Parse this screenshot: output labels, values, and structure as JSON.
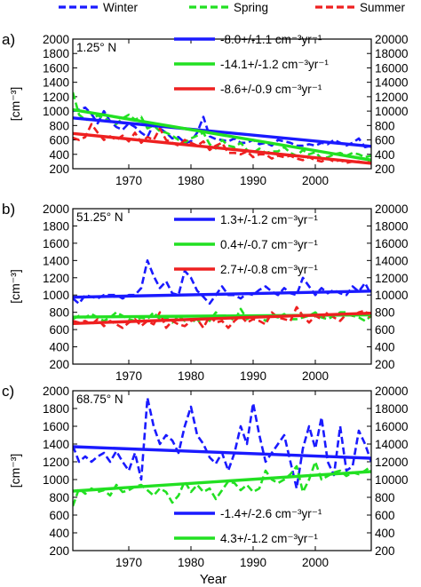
{
  "figure": {
    "legend": [
      {
        "label": "Winter",
        "color": "#1a1aff"
      },
      {
        "label": "Spring",
        "color": "#22e022"
      },
      {
        "label": "Summer",
        "color": "#ee2020"
      }
    ],
    "xlabel": "Year"
  },
  "chart_data": [
    {
      "type": "line",
      "panel": "a)",
      "latitude": "1.25° N",
      "ylabel": "[cm⁻³]",
      "xlim": [
        1961,
        2009
      ],
      "ylim": [
        200,
        2000
      ],
      "xticks": [
        "1970",
        "1980",
        "1990",
        "2000"
      ],
      "yticks_left": [
        "200",
        "400",
        "600",
        "800",
        "1000",
        "1200",
        "1400",
        "1600",
        "1800",
        "2000"
      ],
      "yticks_right": [
        "200",
        "400",
        "600",
        "800",
        "10000",
        "12000",
        "14000",
        "16000",
        "18000",
        "20000"
      ],
      "x": [
        1961,
        1962,
        1963,
        1964,
        1965,
        1966,
        1967,
        1968,
        1969,
        1970,
        1971,
        1972,
        1973,
        1974,
        1975,
        1976,
        1977,
        1978,
        1979,
        1980,
        1981,
        1982,
        1983,
        1984,
        1985,
        1986,
        1987,
        1988,
        1989,
        1990,
        1991,
        1992,
        1993,
        1994,
        1995,
        1996,
        1997,
        1998,
        1999,
        2000,
        2001,
        2002,
        2003,
        2004,
        2005,
        2006,
        2007,
        2008,
        2009
      ],
      "series": [
        {
          "name": "Winter",
          "color": "#1a1aff",
          "values": [
            1000,
            1020,
            1050,
            960,
            830,
            1000,
            860,
            780,
            740,
            830,
            780,
            700,
            640,
            820,
            760,
            700,
            620,
            640,
            560,
            580,
            700,
            920,
            650,
            610,
            600,
            580,
            620,
            560,
            560,
            600,
            540,
            560,
            520,
            600,
            580,
            560,
            520,
            520,
            540,
            520,
            560,
            540,
            600,
            560,
            520,
            560,
            620,
            500,
            520
          ]
        },
        {
          "name": "Spring",
          "color": "#22e022",
          "values": [
            1260,
            950,
            880,
            880,
            940,
            900,
            860,
            820,
            900,
            950,
            880,
            920,
            760,
            800,
            720,
            700,
            660,
            600,
            560,
            620,
            660,
            700,
            540,
            480,
            600,
            520,
            500,
            560,
            460,
            420,
            480,
            420,
            440,
            440,
            500,
            420,
            380,
            460,
            400,
            430,
            340,
            360,
            400,
            420,
            380,
            420,
            400,
            360,
            380
          ]
        },
        {
          "name": "Summer",
          "color": "#ee2020",
          "values": [
            630,
            600,
            640,
            820,
            700,
            600,
            650,
            600,
            660,
            580,
            700,
            560,
            640,
            600,
            760,
            600,
            560,
            520,
            600,
            560,
            520,
            580,
            460,
            520,
            560,
            420,
            420,
            400,
            440,
            360,
            400,
            400,
            340,
            380,
            360,
            380,
            340,
            320,
            360,
            320,
            300,
            340,
            300,
            320,
            280,
            300,
            300,
            280,
            300
          ]
        }
      ],
      "trends": [
        {
          "series": "Winter",
          "color": "#1a1aff",
          "value": "-8.0+/-1.1",
          "unit": "cm⁻³yr⁻¹",
          "start": 905,
          "end": 510
        },
        {
          "series": "Spring",
          "color": "#22e022",
          "value": "-14.1+/-1.2",
          "unit": "cm⁻³yr⁻¹",
          "start": 1020,
          "end": 320
        },
        {
          "series": "Summer",
          "color": "#ee2020",
          "value": "-8.6+/-0.9",
          "unit": "cm⁻³yr⁻¹",
          "start": 690,
          "end": 275
        }
      ]
    },
    {
      "type": "line",
      "panel": "b)",
      "latitude": "51.25° N",
      "ylabel": "[cm⁻³]",
      "xlim": [
        1961,
        2009
      ],
      "ylim": [
        200,
        2000
      ],
      "xticks": [
        "1970",
        "1980",
        "1990",
        "2000"
      ],
      "yticks_left": [
        "200",
        "400",
        "600",
        "800",
        "1000",
        "1200",
        "1400",
        "1600",
        "1800",
        "2000"
      ],
      "yticks_right": [
        "200",
        "400",
        "600",
        "800",
        "10000",
        "12000",
        "14000",
        "16000",
        "18000",
        "20000"
      ],
      "x": [
        1961,
        1962,
        1963,
        1964,
        1965,
        1966,
        1967,
        1968,
        1969,
        1970,
        1971,
        1972,
        1973,
        1974,
        1975,
        1976,
        1977,
        1978,
        1979,
        1980,
        1981,
        1982,
        1983,
        1984,
        1985,
        1986,
        1987,
        1988,
        1989,
        1990,
        1991,
        1992,
        1993,
        1994,
        1995,
        1996,
        1997,
        1998,
        1999,
        2000,
        2001,
        2002,
        2003,
        2004,
        2005,
        2006,
        2007,
        2008,
        2009
      ],
      "series": [
        {
          "name": "Winter",
          "color": "#1a1aff",
          "values": [
            960,
            900,
            1000,
            980,
            960,
            1000,
            1000,
            1000,
            960,
            1000,
            1000,
            1080,
            1400,
            1220,
            1080,
            1160,
            1020,
            1000,
            1280,
            1200,
            1050,
            980,
            900,
            1000,
            1100,
            1000,
            1000,
            960,
            1020,
            1000,
            1060,
            1100,
            1040,
            1000,
            1080,
            1020,
            1000,
            1200,
            1100,
            1000,
            1080,
            1020,
            1060,
            1020,
            1000,
            1100,
            1040,
            1140,
            1000
          ]
        },
        {
          "name": "Spring",
          "color": "#22e022",
          "values": [
            720,
            760,
            740,
            780,
            740,
            700,
            740,
            800,
            760,
            720,
            700,
            740,
            720,
            800,
            720,
            740,
            680,
            760,
            700,
            720,
            680,
            760,
            700,
            800,
            720,
            760,
            700,
            840,
            720,
            760,
            760,
            700,
            760,
            740,
            780,
            720,
            720,
            740,
            760,
            800,
            740,
            720,
            760,
            800,
            800,
            760,
            740,
            700,
            760
          ]
        },
        {
          "name": "Summer",
          "color": "#ee2020",
          "values": [
            700,
            680,
            700,
            660,
            720,
            640,
            700,
            660,
            620,
            680,
            720,
            640,
            700,
            660,
            800,
            620,
            700,
            660,
            640,
            700,
            720,
            620,
            760,
            680,
            700,
            620,
            700,
            760,
            680,
            720,
            700,
            660,
            800,
            740,
            720,
            700,
            860,
            760,
            680,
            760,
            720,
            800,
            740,
            700,
            780,
            760,
            800,
            820,
            720
          ]
        }
      ],
      "trends": [
        {
          "series": "Winter",
          "color": "#1a1aff",
          "value": "1.3+/-1.2",
          "unit": "cm⁻³yr⁻¹",
          "start": 975,
          "end": 1045
        },
        {
          "series": "Spring",
          "color": "#22e022",
          "value": "0.4+/-0.7",
          "unit": "cm⁻³yr⁻¹",
          "start": 745,
          "end": 770
        },
        {
          "series": "Summer",
          "color": "#ee2020",
          "value": "2.7+/-0.8",
          "unit": "cm⁻³yr⁻¹",
          "start": 670,
          "end": 790
        }
      ]
    },
    {
      "type": "line",
      "panel": "c)",
      "latitude": "68.75° N",
      "ylabel": "[cm⁻³]",
      "xlim": [
        1961,
        2009
      ],
      "ylim": [
        200,
        2000
      ],
      "xticks": [
        "1970",
        "1980",
        "1990",
        "2000"
      ],
      "yticks_left": [
        "200",
        "400",
        "600",
        "800",
        "1000",
        "1200",
        "1400",
        "1600",
        "1800",
        "2000"
      ],
      "yticks_right": [
        "200",
        "400",
        "600",
        "800",
        "10000",
        "12000",
        "14000",
        "16000",
        "18000",
        "20000"
      ],
      "x": [
        1961,
        1962,
        1963,
        1964,
        1965,
        1966,
        1967,
        1968,
        1969,
        1970,
        1971,
        1972,
        1973,
        1974,
        1975,
        1976,
        1977,
        1978,
        1979,
        1980,
        1981,
        1982,
        1983,
        1984,
        1985,
        1986,
        1987,
        1988,
        1989,
        1990,
        1991,
        1992,
        1993,
        1994,
        1995,
        1996,
        1997,
        1998,
        1999,
        2000,
        2001,
        2002,
        2003,
        2004,
        2005,
        2006,
        2007,
        2008,
        2009
      ],
      "series": [
        {
          "name": "Winter",
          "color": "#1a1aff",
          "values": [
            1380,
            1200,
            1260,
            1200,
            1260,
            1300,
            1200,
            1320,
            1200,
            1100,
            1300,
            1000,
            1920,
            1600,
            1400,
            1500,
            1440,
            1300,
            1600,
            1820,
            1500,
            1400,
            1250,
            1180,
            1300,
            1100,
            1300,
            1600,
            1400,
            1860,
            1500,
            1200,
            1300,
            1400,
            1500,
            1200,
            900,
            1350,
            1600,
            1350,
            1700,
            1200,
            1050,
            1600,
            1100,
            1150,
            1550,
            1400,
            1200
          ]
        },
        {
          "name": "Spring",
          "color": "#22e022",
          "values": [
            700,
            900,
            840,
            900,
            860,
            880,
            820,
            940,
            860,
            880,
            920,
            940,
            880,
            820,
            900,
            860,
            740,
            820,
            980,
            860,
            940,
            860,
            900,
            780,
            880,
            980,
            960,
            880,
            940,
            860,
            900,
            1100,
            1000,
            960,
            1000,
            1060,
            1150,
            860,
            1000,
            1200,
            1000,
            1040,
            1080,
            1100,
            1040,
            1080,
            1060,
            1100,
            1150
          ]
        }
      ],
      "trends": [
        {
          "series": "Winter",
          "color": "#1a1aff",
          "value": "-1.4+/-2.6",
          "unit": "cm⁻³yr⁻¹",
          "start": 1370,
          "end": 1240
        },
        {
          "series": "Spring",
          "color": "#22e022",
          "value": "4.3+/-1.2",
          "unit": "cm⁻³yr⁻¹",
          "start": 870,
          "end": 1090
        }
      ]
    }
  ]
}
